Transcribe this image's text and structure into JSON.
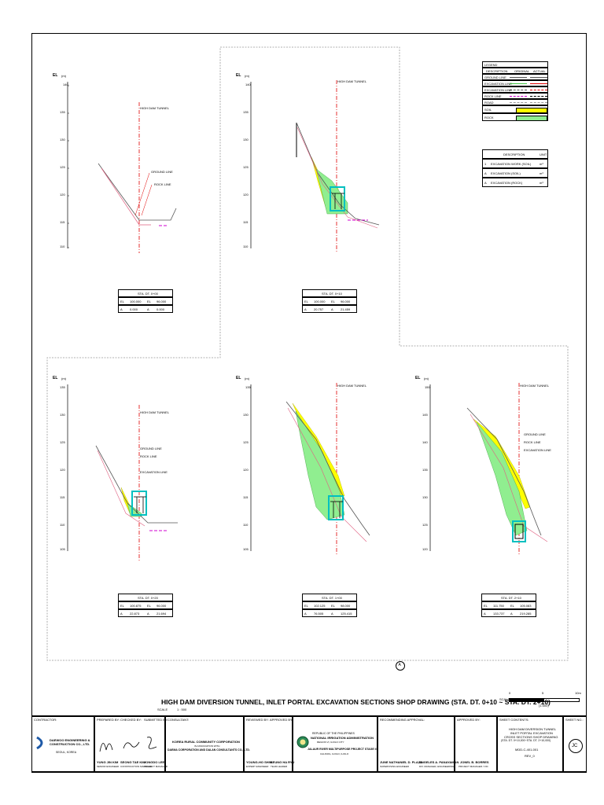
{
  "sections": [
    {
      "el_label": "EL",
      "el_unit": "(m)",
      "ticks": [
        "140",
        "135",
        "130",
        "125",
        "120",
        "115",
        "110"
      ],
      "cl": "HIGH DAM TUNNEL",
      "labels": [
        "GROUND LINE",
        "ROCK LINE"
      ],
      "sta_title": "STA. DT. 0+00",
      "sta_rows": [
        [
          "EL",
          "100.000",
          "EL",
          "96.000"
        ],
        [
          "A",
          "0.000",
          "A",
          "0.000"
        ]
      ]
    },
    {
      "el_label": "EL",
      "el_unit": "(m)",
      "ticks": [
        "140",
        "135",
        "130",
        "125",
        "120",
        "115",
        "110"
      ],
      "cl": "HIGH DAM TUNNEL",
      "labels": [],
      "sta_title": "STA. DT. 0+10",
      "sta_rows": [
        [
          "EL",
          "100.000",
          "EL",
          "96.000"
        ],
        [
          "A",
          "20.757",
          "A",
          "21.459"
        ]
      ]
    },
    {
      "el_label": "EL",
      "el_unit": "(m)",
      "ticks": [
        "135",
        "130",
        "125",
        "120",
        "115",
        "110",
        "105"
      ],
      "cl": "HIGH DAM TUNNEL",
      "labels": [
        "GROUND LINE",
        "ROCK LINE",
        "EXCAVATION LINE"
      ],
      "sta_title": "STA. DT. 0+20",
      "sta_rows": [
        [
          "EL",
          "100.875",
          "EL",
          "96.000"
        ],
        [
          "A",
          "22.873",
          "A",
          "21.694"
        ]
      ]
    },
    {
      "el_label": "EL",
      "el_unit": "(m)",
      "ticks": [
        "135",
        "130",
        "125",
        "120",
        "115",
        "110",
        "105"
      ],
      "cl": "HIGH DAM TUNNEL",
      "labels": [],
      "sta_title": "STA. DT. 1+00",
      "sta_rows": [
        [
          "EL",
          "102.125",
          "EL",
          "98.000"
        ],
        [
          "A",
          "76.505",
          "A",
          "125.415"
        ]
      ]
    },
    {
      "el_label": "EL",
      "el_unit": "(m)",
      "ticks": [
        "150",
        "145",
        "140",
        "135",
        "130",
        "125",
        "120"
      ],
      "cl": "HIGH DAM TUNNEL",
      "labels": [
        "GROUND LINE",
        "ROCK LINE",
        "EXCAVATION LINE"
      ],
      "sta_title": "STA. DT. 2+10",
      "sta_rows": [
        [
          "EL",
          "111.750",
          "EL",
          "105.083"
        ],
        [
          "A",
          "133.737",
          "A",
          "219.285"
        ]
      ]
    }
  ],
  "legend": {
    "title": "LEGEND",
    "header": [
      "DESCRIPTION",
      "ORIGINAL",
      "ACTUAL"
    ],
    "rows": [
      "GROUND LINE",
      "EXCAVATION LINE",
      "EXCAVATION LINE",
      "ROCK LINE",
      "ROAD"
    ],
    "fill_rows": [
      "SOIL",
      "ROCK"
    ],
    "soil_color": "#ffff00",
    "rock_color": "#90ee90"
  },
  "quantities": {
    "header": [
      "",
      "DESCRIPTION",
      "UNIT"
    ],
    "rows": [
      [
        "1",
        "EXCAVATION WORK (SOIL)",
        "m³"
      ],
      [
        "A",
        "EXCAVATION (SOIL)",
        "m³"
      ],
      [
        "A",
        "EXCAVATION (ROCK)",
        "m³"
      ]
    ]
  },
  "drawing_title": "HIGH DAM DIVERSION TUNNEL, INLET PORTAL EXCAVATION SECTIONS SHOP DRAWING (STA. DT. 0+10 ~ STA. DT. 2+10)",
  "scale_label": "SCALE",
  "scale_value": "1 : 500",
  "scale_bar": {
    "label": "SCALE",
    "ticks": [
      "0",
      "5",
      "10m"
    ],
    "ratio": "(1:500)"
  },
  "center_mark": "A",
  "title_block": {
    "contractor_label": "CONTRACTOR:",
    "contractor_name": "DAEWOO ENGINEERING & CONSTRUCTION CO., LTD.",
    "contractor_sub": "SEOUL, KOREA",
    "prepared_label": "PREPARED BY:",
    "checked_label": "CHECKED BY:",
    "submitted_label": "SUBMITTED BY:",
    "signatories": [
      {
        "name": "YUNG JIN KIM",
        "role": "SENIOR ENGINEER"
      },
      {
        "name": "SEONG TAE KIM",
        "role": "CONSTRUCTION MANAGER"
      },
      {
        "name": "JONGDO LEE",
        "role": "PROJECT MANAGER"
      }
    ],
    "consultant_label": "CONSULTANT:",
    "consultant_name": "KOREA RURAL COMMUNITY CORPORATION",
    "consultant_sub": "IN ASSOCIATION WITH",
    "consultant_name2": "DAEMA CORPORATION AND DALAN CONSULTANTS CO., LTD.",
    "reviewed_label": "REVIEWED BY:",
    "approved_label2": "APPROVED BY:",
    "reviewers": [
      {
        "name": "YOUNG-HO SHIM",
        "role": "EXPERT ENGINEER"
      },
      {
        "name": "SEUNG HA RYU",
        "role": "TEAM LEADER"
      }
    ],
    "owner_lines": [
      "REPUBLIC OF THE PHILIPPINES",
      "NATIONAL IRRIGATION ADMINISTRATION",
      "REGION VI, ILOILO CITY",
      "JALAUR RIVER MULTIPURPOSE PROJECT STAGE II",
      "CALINOG, ILOILO, ILOILO"
    ],
    "recommending_label": "RECOMMENDING APPROVAL:",
    "recommenders": [
      {
        "name": "JUNE NATHANIEL D. PLAZA",
        "role": "SUPERVISING ENGINEER"
      },
      {
        "name": "ANGELES A. PANAYAMAN",
        "role": "DIV. MANAGER, ENGINEERING"
      }
    ],
    "approved_label": "APPROVED BY:",
    "approver": {
      "name": "JONEL B. BORRES",
      "role": "PROJECT MANAGER / OIC"
    },
    "sheet_contents_label": "SHEET CONTENTS:",
    "sheet_contents": [
      "HIGH DAM DIVERSION TUNNEL",
      "INLET PORTAL EXCAVATION",
      "CROSS SECTIONS SHOP DRAWING",
      "(STA. DT. 0+10,000~STA. DT. 2+10,000)"
    ],
    "drawing_no": "MDD-C-401-001",
    "rev": "REV_0",
    "sheet_no_label": "SHEET NO.:",
    "sheet_no": "JC"
  }
}
